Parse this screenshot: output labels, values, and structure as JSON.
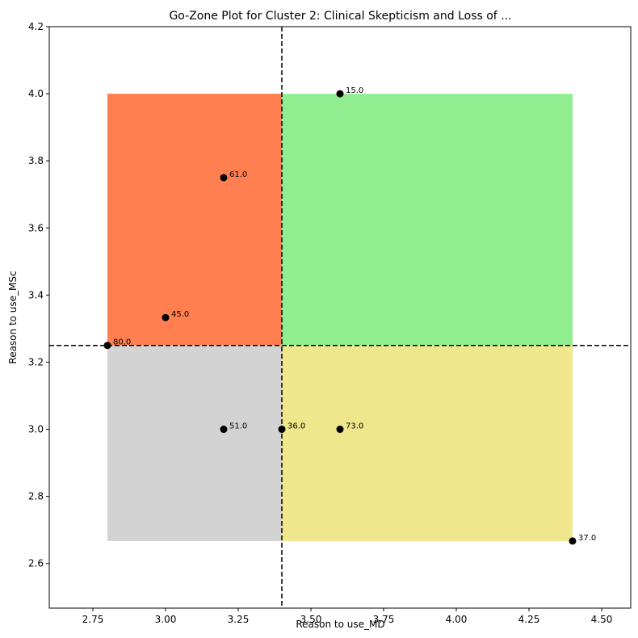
{
  "chart_data": {
    "type": "scatter",
    "title": "Go-Zone Plot for Cluster 2: Clinical Skepticism and Loss of ...",
    "xlabel": "Reason to use_MD",
    "ylabel": "Reason to use_MSc",
    "xlim": [
      2.6,
      4.6
    ],
    "ylim": [
      2.467,
      4.2
    ],
    "x_ticks": [
      2.75,
      3.0,
      3.25,
      3.5,
      3.75,
      4.0,
      4.25,
      4.5
    ],
    "x_tick_labels": [
      "2.75",
      "3.00",
      "3.25",
      "3.50",
      "3.75",
      "4.00",
      "4.25",
      "4.50"
    ],
    "y_ticks": [
      2.6,
      2.8,
      3.0,
      3.2,
      3.4,
      3.6,
      3.8,
      4.0,
      4.2
    ],
    "y_tick_labels": [
      "2.6",
      "2.8",
      "3.0",
      "3.2",
      "3.4",
      "3.6",
      "3.8",
      "4.0",
      "4.2"
    ],
    "grid": false,
    "x_mean": 3.4,
    "y_mean": 3.25,
    "data_xrange": [
      2.8,
      4.4
    ],
    "data_yrange": [
      2.667,
      4.0
    ],
    "quadrant_colors": {
      "top_left": "#ff7f50",
      "top_right": "#90ee90",
      "bottom_left": "#d3d3d3",
      "bottom_right": "#f0e68c"
    },
    "point_color": "#000000",
    "points": [
      {
        "label": "15.0",
        "x": 3.6,
        "y": 4.0
      },
      {
        "label": "61.0",
        "x": 3.2,
        "y": 3.75
      },
      {
        "label": "45.0",
        "x": 3.0,
        "y": 3.333
      },
      {
        "label": "80.0",
        "x": 2.8,
        "y": 3.25
      },
      {
        "label": "51.0",
        "x": 3.2,
        "y": 3.0
      },
      {
        "label": "36.0",
        "x": 3.4,
        "y": 3.0
      },
      {
        "label": "73.0",
        "x": 3.6,
        "y": 3.0
      },
      {
        "label": "37.0",
        "x": 4.4,
        "y": 2.667
      }
    ]
  }
}
